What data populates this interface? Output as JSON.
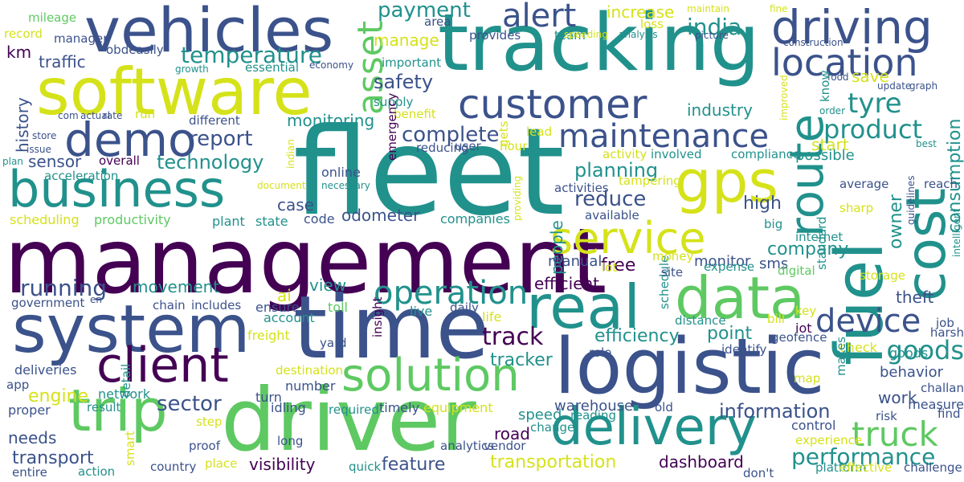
{
  "palette": {
    "purple": "#440154",
    "indigo": "#3b528b",
    "teal": "#21918c",
    "green": "#5ec962",
    "yellow": "#d5e21a"
  },
  "words": [
    {
      "text": "fleet",
      "c": "teal"
    },
    {
      "text": "management",
      "c": "purple"
    },
    {
      "text": "tracking",
      "c": "teal"
    },
    {
      "text": "time",
      "c": "indigo"
    },
    {
      "text": "logistic",
      "c": "indigo"
    },
    {
      "text": "driver",
      "c": "green"
    },
    {
      "text": "system",
      "c": "indigo"
    },
    {
      "text": "software",
      "c": "yellow"
    },
    {
      "text": "vehicles",
      "c": "indigo"
    },
    {
      "text": "fuel",
      "c": "teal"
    },
    {
      "text": "real",
      "c": "teal"
    },
    {
      "text": "business",
      "c": "teal"
    },
    {
      "text": "cost",
      "c": "teal"
    },
    {
      "text": "trip",
      "c": "green"
    },
    {
      "text": "data",
      "c": "green"
    },
    {
      "text": "gps",
      "c": "yellow"
    },
    {
      "text": "delivery",
      "c": "teal"
    },
    {
      "text": "service",
      "c": "yellow"
    },
    {
      "text": "driving",
      "c": "indigo"
    },
    {
      "text": "route",
      "c": "teal"
    },
    {
      "text": "customer",
      "c": "indigo"
    },
    {
      "text": "client",
      "c": "purple"
    },
    {
      "text": "demo",
      "c": "indigo"
    },
    {
      "text": "solution",
      "c": "green"
    },
    {
      "text": "location",
      "c": "indigo"
    },
    {
      "text": "maintenance",
      "c": "indigo"
    },
    {
      "text": "device",
      "c": "indigo"
    },
    {
      "text": "operation",
      "c": "teal"
    },
    {
      "text": "truck",
      "c": "green"
    },
    {
      "text": "alert",
      "c": "indigo"
    },
    {
      "text": "tyre",
      "c": "teal"
    },
    {
      "text": "performance",
      "c": "teal"
    },
    {
      "text": "goods",
      "c": "teal"
    },
    {
      "text": "product",
      "c": "teal"
    },
    {
      "text": "complete",
      "c": "indigo"
    },
    {
      "text": "asset",
      "c": "green"
    },
    {
      "text": "report",
      "c": "indigo"
    },
    {
      "text": "temperature",
      "c": "teal"
    },
    {
      "text": "payment",
      "c": "teal"
    },
    {
      "text": "track",
      "c": "purple"
    },
    {
      "text": "india",
      "c": "teal"
    },
    {
      "text": "running",
      "c": "indigo"
    },
    {
      "text": "safety",
      "c": "indigo"
    },
    {
      "text": "technology",
      "c": "teal"
    },
    {
      "text": "planning",
      "c": "teal"
    },
    {
      "text": "reduce",
      "c": "indigo"
    },
    {
      "text": "efficiency",
      "c": "teal"
    },
    {
      "text": "transportation",
      "c": "yellow"
    },
    {
      "text": "information",
      "c": "indigo"
    },
    {
      "text": "increase",
      "c": "yellow"
    },
    {
      "text": "sector",
      "c": "indigo"
    },
    {
      "text": "company",
      "c": "teal"
    },
    {
      "text": "dashboard",
      "c": "purple"
    },
    {
      "text": "owner",
      "c": "teal"
    },
    {
      "text": "high",
      "c": "indigo"
    },
    {
      "text": "industry",
      "c": "teal"
    },
    {
      "text": "consumption",
      "c": "teal"
    },
    {
      "text": "movement",
      "c": "teal"
    },
    {
      "text": "monitoring",
      "c": "teal"
    },
    {
      "text": "efficient",
      "c": "purple"
    },
    {
      "text": "view",
      "c": "teal"
    },
    {
      "text": "behavior",
      "c": "indigo"
    },
    {
      "text": "odometer",
      "c": "indigo"
    },
    {
      "text": "sensor",
      "c": "indigo"
    },
    {
      "text": "engine",
      "c": "yellow"
    },
    {
      "text": "transport",
      "c": "indigo"
    },
    {
      "text": "tracker",
      "c": "teal"
    },
    {
      "text": "visibility",
      "c": "purple"
    },
    {
      "text": "feature",
      "c": "indigo"
    },
    {
      "text": "point",
      "c": "teal"
    },
    {
      "text": "free",
      "c": "purple"
    },
    {
      "text": "case",
      "c": "indigo"
    },
    {
      "text": "work",
      "c": "indigo"
    },
    {
      "text": "theft",
      "c": "indigo"
    },
    {
      "text": "start",
      "c": "yellow"
    },
    {
      "text": "history",
      "c": "indigo"
    },
    {
      "text": "people",
      "c": "teal"
    },
    {
      "text": "traffic",
      "c": "indigo"
    },
    {
      "text": "manage",
      "c": "yellow"
    },
    {
      "text": "road",
      "c": "purple"
    },
    {
      "text": "save",
      "c": "yellow"
    },
    {
      "text": "ai",
      "c": "yellow"
    },
    {
      "text": "km",
      "c": "purple"
    },
    {
      "text": "needs",
      "c": "indigo"
    },
    {
      "text": "possible",
      "c": "teal"
    },
    {
      "text": "speed",
      "c": "teal"
    },
    {
      "text": "manual",
      "c": "indigo"
    },
    {
      "text": "warehouse",
      "c": "indigo"
    },
    {
      "text": "monitor",
      "c": "indigo"
    },
    {
      "text": "sms",
      "c": "indigo"
    },
    {
      "text": "scheduling",
      "c": "yellow"
    },
    {
      "text": "productivity",
      "c": "green"
    },
    {
      "text": "online",
      "c": "indigo"
    },
    {
      "text": "deliveries",
      "c": "indigo"
    },
    {
      "text": "network",
      "c": "teal"
    },
    {
      "text": "freight",
      "c": "yellow"
    },
    {
      "text": "toll",
      "c": "green"
    },
    {
      "text": "live",
      "c": "teal"
    },
    {
      "text": "life",
      "c": "yellow"
    },
    {
      "text": "account",
      "c": "teal"
    },
    {
      "text": "ensure",
      "c": "indigo"
    },
    {
      "text": "turn",
      "c": "indigo"
    },
    {
      "text": "idling",
      "c": "indigo"
    },
    {
      "text": "timely",
      "c": "indigo"
    },
    {
      "text": "equipment",
      "c": "yellow"
    },
    {
      "text": "number",
      "c": "indigo"
    },
    {
      "text": "proper",
      "c": "indigo"
    },
    {
      "text": "control",
      "c": "indigo"
    },
    {
      "text": "measure",
      "c": "indigo"
    },
    {
      "text": "iot",
      "c": "purple"
    },
    {
      "text": "check",
      "c": "yellow"
    },
    {
      "text": "goods",
      "c": "teal"
    },
    {
      "text": "companies",
      "c": "teal"
    },
    {
      "text": "code",
      "c": "indigo"
    },
    {
      "text": "state",
      "c": "teal"
    },
    {
      "text": "plant",
      "c": "teal"
    },
    {
      "text": "overall",
      "c": "purple"
    },
    {
      "text": "acceleration",
      "c": "teal"
    },
    {
      "text": "different",
      "c": "indigo"
    },
    {
      "text": "obdeasily",
      "c": "indigo"
    },
    {
      "text": "essential",
      "c": "teal"
    },
    {
      "text": "important",
      "c": "teal"
    },
    {
      "text": "supply",
      "c": "teal"
    },
    {
      "text": "benefit",
      "c": "yellow"
    },
    {
      "text": "lead",
      "c": "yellow"
    },
    {
      "text": "user",
      "c": "indigo"
    },
    {
      "text": "reducing",
      "c": "indigo"
    },
    {
      "text": "hour",
      "c": "yellow"
    },
    {
      "text": "gets",
      "c": "yellow"
    },
    {
      "text": "emergency",
      "c": "purple"
    },
    {
      "text": "involved",
      "c": "teal"
    },
    {
      "text": "compliance",
      "c": "teal"
    },
    {
      "text": "activity",
      "c": "yellow"
    },
    {
      "text": "tampering",
      "c": "yellow"
    },
    {
      "text": "activities",
      "c": "indigo"
    },
    {
      "text": "available",
      "c": "indigo"
    },
    {
      "text": "average",
      "c": "indigo"
    },
    {
      "text": "reach",
      "c": "indigo"
    },
    {
      "text": "sharp",
      "c": "yellow"
    },
    {
      "text": "internet",
      "c": "teal"
    },
    {
      "text": "digital",
      "c": "green"
    },
    {
      "text": "standard",
      "c": "teal"
    },
    {
      "text": "storage",
      "c": "yellow"
    },
    {
      "text": "key",
      "c": "yellow"
    },
    {
      "text": "job",
      "c": "indigo"
    },
    {
      "text": "harsh",
      "c": "indigo"
    },
    {
      "text": "geofence",
      "c": "indigo"
    },
    {
      "text": "identify",
      "c": "indigo"
    },
    {
      "text": "role",
      "c": "indigo"
    },
    {
      "text": "bill",
      "c": "yellow"
    },
    {
      "text": "distance",
      "c": "teal"
    },
    {
      "text": "schedule",
      "c": "teal"
    },
    {
      "text": "money",
      "c": "yellow"
    },
    {
      "text": "site",
      "c": "indigo"
    },
    {
      "text": "expense",
      "c": "teal"
    },
    {
      "text": "lot",
      "c": "yellow"
    },
    {
      "text": "big",
      "c": "teal"
    },
    {
      "text": "chain",
      "c": "indigo"
    },
    {
      "text": "includes",
      "c": "indigo"
    },
    {
      "text": "government",
      "c": "indigo"
    },
    {
      "text": "insight",
      "c": "purple"
    },
    {
      "text": "yard",
      "c": "indigo"
    },
    {
      "text": "daily",
      "c": "indigo"
    },
    {
      "text": "destination",
      "c": "yellow"
    },
    {
      "text": "app",
      "c": "indigo"
    },
    {
      "text": "result",
      "c": "teal"
    },
    {
      "text": "detail",
      "c": "teal"
    },
    {
      "text": "required",
      "c": "teal"
    },
    {
      "text": "step",
      "c": "yellow"
    },
    {
      "text": "smart",
      "c": "yellow"
    },
    {
      "text": "proof",
      "c": "indigo"
    },
    {
      "text": "long",
      "c": "indigo"
    },
    {
      "text": "analytics",
      "c": "indigo"
    },
    {
      "text": "vendor",
      "c": "indigo"
    },
    {
      "text": "change",
      "c": "teal"
    },
    {
      "text": "reading",
      "c": "teal"
    },
    {
      "text": "old",
      "c": "indigo"
    },
    {
      "text": "country",
      "c": "indigo"
    },
    {
      "text": "place",
      "c": "yellow"
    },
    {
      "text": "quick",
      "c": "teal"
    },
    {
      "text": "entire",
      "c": "indigo"
    },
    {
      "text": "action",
      "c": "teal"
    },
    {
      "text": "platform",
      "c": "teal"
    },
    {
      "text": "effective",
      "c": "yellow"
    },
    {
      "text": "challenge",
      "c": "indigo"
    },
    {
      "text": "don't",
      "c": "indigo"
    },
    {
      "text": "experience",
      "c": "yellow"
    },
    {
      "text": "risk",
      "c": "indigo"
    },
    {
      "text": "find",
      "c": "indigo"
    },
    {
      "text": "challan",
      "c": "indigo"
    },
    {
      "text": "map",
      "c": "yellow"
    },
    {
      "text": "makes",
      "c": "teal"
    },
    {
      "text": "mileage",
      "c": "green"
    },
    {
      "text": "record",
      "c": "yellow"
    },
    {
      "text": "manager",
      "c": "indigo"
    },
    {
      "text": "growth",
      "c": "teal"
    },
    {
      "text": "economy",
      "c": "indigo"
    },
    {
      "text": "area",
      "c": "indigo"
    },
    {
      "text": "provides",
      "c": "indigo"
    },
    {
      "text": "team",
      "c": "teal"
    },
    {
      "text": "speeding",
      "c": "yellow"
    },
    {
      "text": "analysis",
      "c": "teal"
    },
    {
      "text": "picture",
      "c": "indigo"
    },
    {
      "text": "construction",
      "c": "indigo"
    },
    {
      "text": "maintain",
      "c": "yellow"
    },
    {
      "text": "fine",
      "c": "yellow"
    },
    {
      "text": "loss",
      "c": "yellow"
    },
    {
      "text": "food",
      "c": "indigo"
    },
    {
      "text": "update",
      "c": "indigo"
    },
    {
      "text": "graph",
      "c": "indigo"
    },
    {
      "text": "know",
      "c": "teal"
    },
    {
      "text": "order",
      "c": "teal"
    },
    {
      "text": "improved",
      "c": "yellow"
    },
    {
      "text": "best",
      "c": "teal"
    },
    {
      "text": "intelligent",
      "c": "teal"
    },
    {
      "text": "guidelines",
      "c": "indigo"
    },
    {
      "text": "com",
      "c": "indigo"
    },
    {
      "text": "actual",
      "c": "indigo"
    },
    {
      "text": "rate",
      "c": "indigo"
    },
    {
      "text": "run",
      "c": "yellow"
    },
    {
      "text": "store",
      "c": "indigo"
    },
    {
      "text": "issue",
      "c": "indigo"
    },
    {
      "text": "plan",
      "c": "teal"
    },
    {
      "text": "indian",
      "c": "yellow"
    },
    {
      "text": "necessary",
      "c": "teal"
    },
    {
      "text": "document",
      "c": "yellow"
    },
    {
      "text": "providing",
      "c": "yellow"
    },
    {
      "text": "en",
      "c": "indigo"
    }
  ]
}
